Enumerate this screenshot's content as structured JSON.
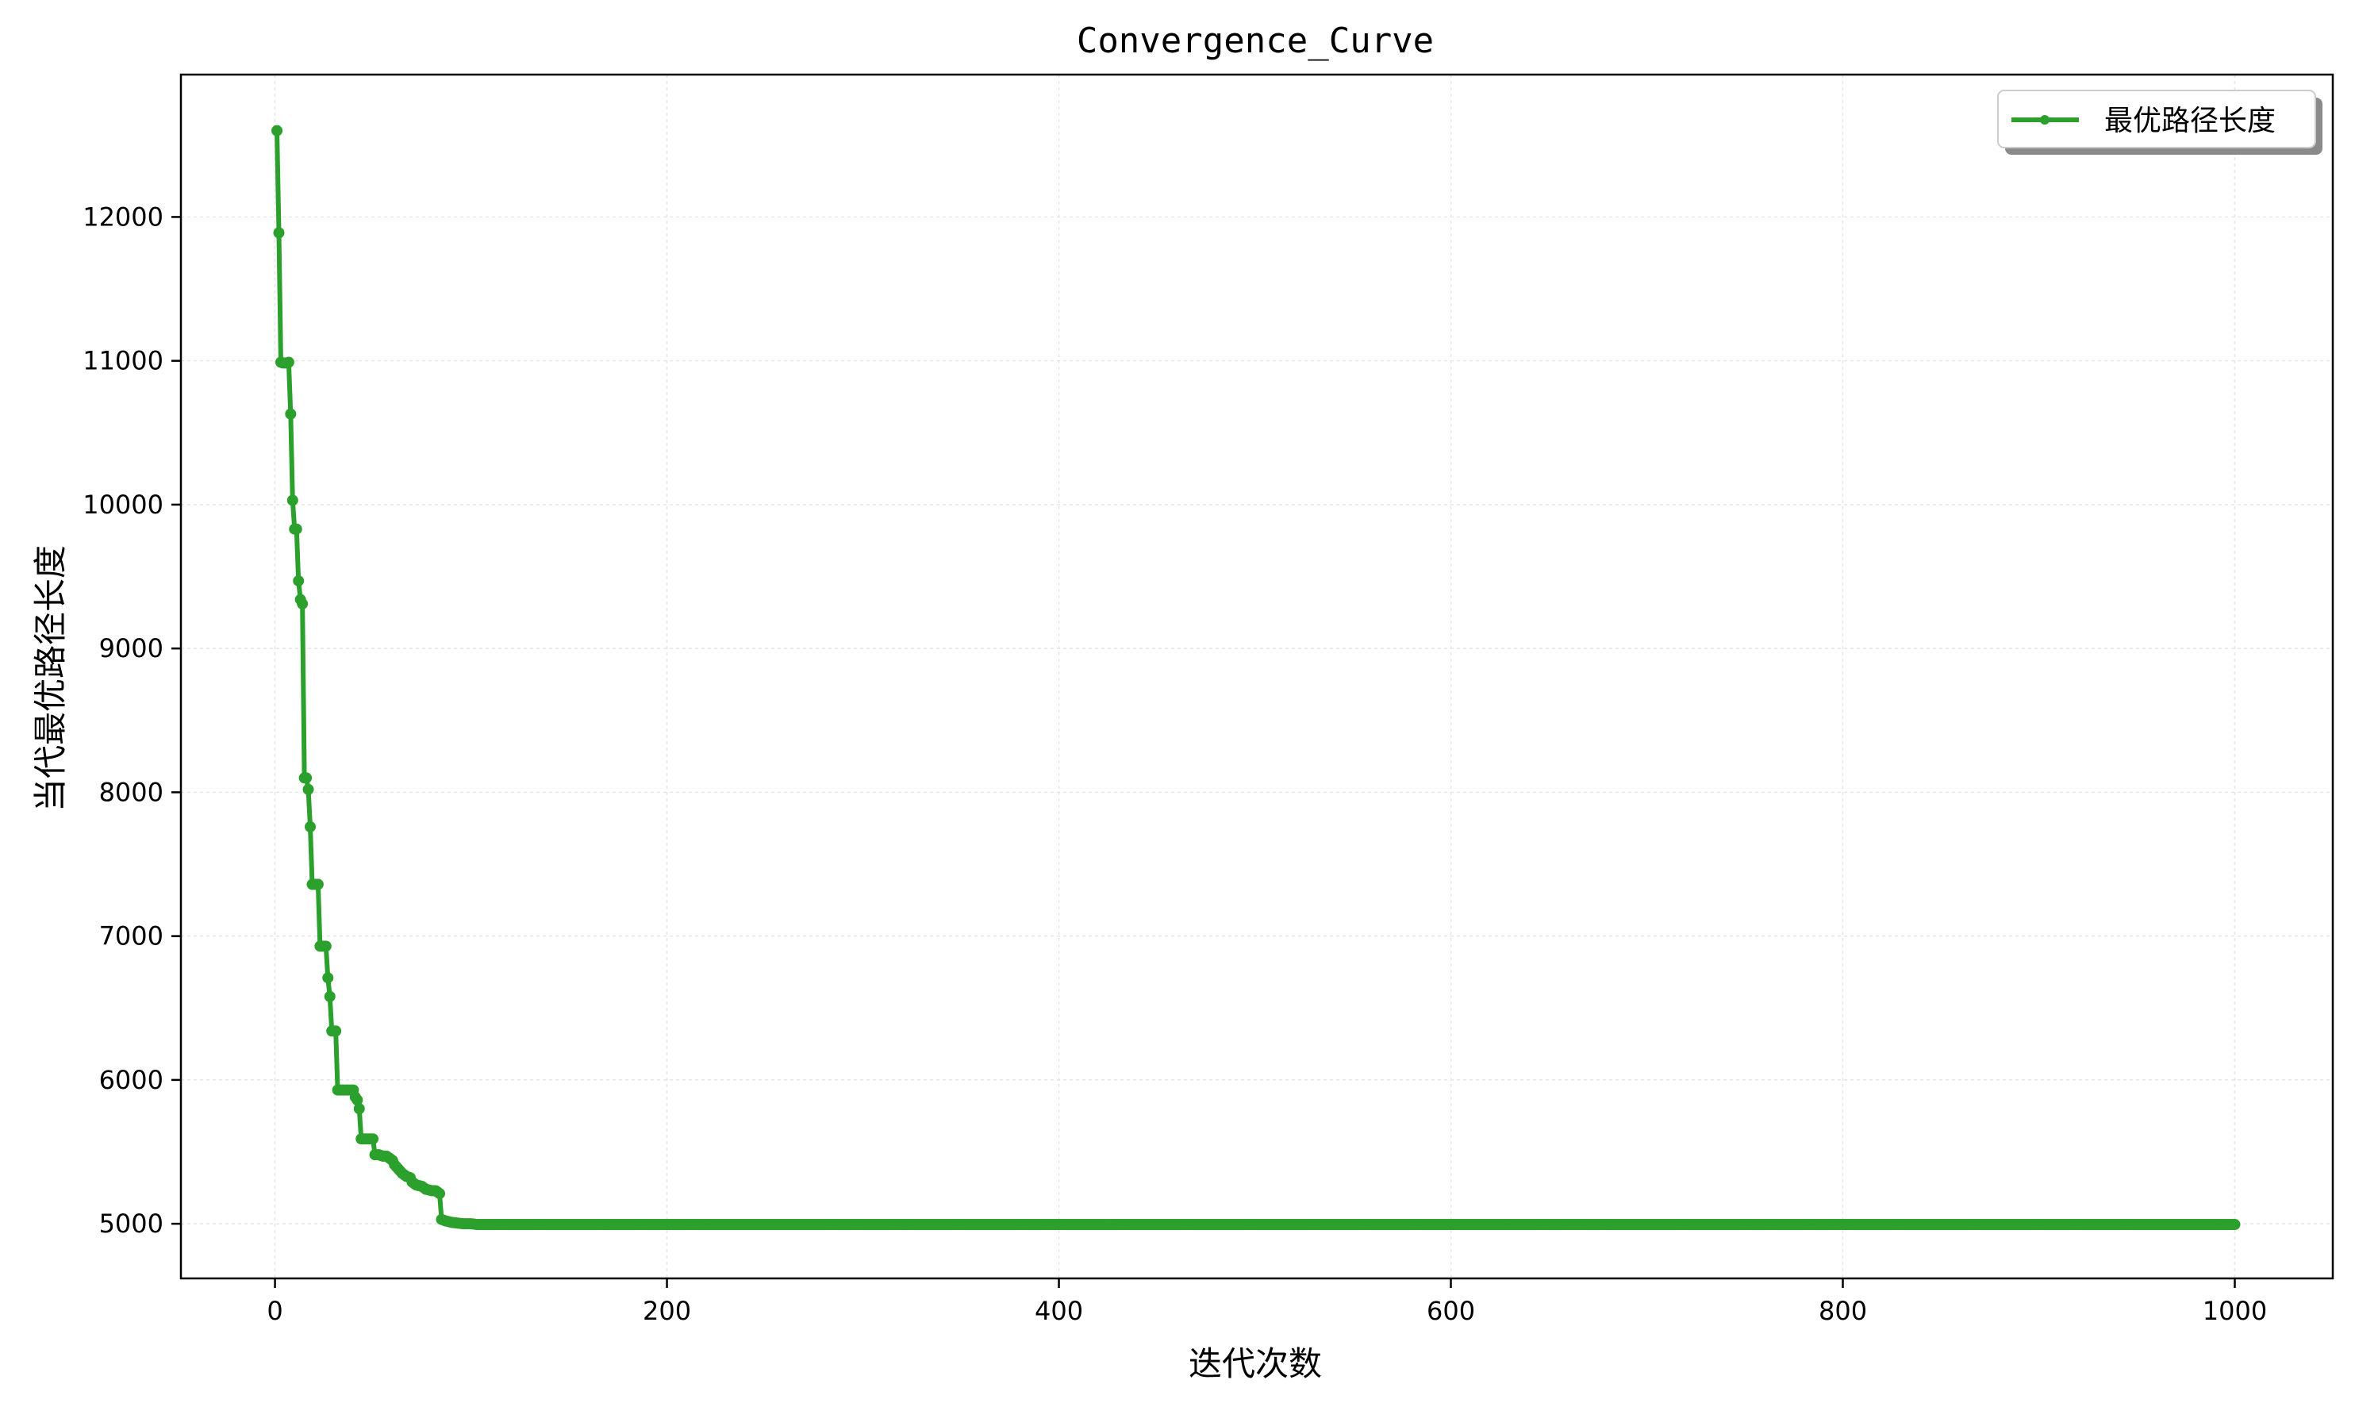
{
  "chart_data": {
    "type": "line",
    "title": "Convergence_Curve",
    "xlabel": "迭代次数",
    "ylabel": "当代最优路径长度",
    "xlim": [
      -48,
      1050
    ],
    "ylim": [
      4620,
      12990
    ],
    "xticks": [
      0,
      200,
      400,
      600,
      800,
      1000
    ],
    "yticks": [
      5000,
      6000,
      7000,
      8000,
      9000,
      10000,
      11000,
      12000
    ],
    "grid": true,
    "legend_position": "top-right",
    "series": [
      {
        "name": "最优路径长度",
        "color": "#2ca02c",
        "marker": "circle",
        "breakpoints": [
          [
            1,
            12600
          ],
          [
            2,
            11890
          ],
          [
            3,
            10990
          ],
          [
            4,
            10985
          ],
          [
            5,
            10985
          ],
          [
            6,
            10985
          ],
          [
            7,
            10990
          ],
          [
            8,
            10630
          ],
          [
            9,
            10030
          ],
          [
            10,
            9830
          ],
          [
            11,
            9830
          ],
          [
            12,
            9470
          ],
          [
            13,
            9340
          ],
          [
            14,
            9310
          ],
          [
            15,
            8100
          ],
          [
            16,
            8100
          ],
          [
            17,
            8020
          ],
          [
            18,
            7760
          ],
          [
            19,
            7360
          ],
          [
            20,
            7360
          ],
          [
            21,
            7360
          ],
          [
            22,
            7360
          ],
          [
            23,
            6930
          ],
          [
            24,
            6930
          ],
          [
            25,
            6930
          ],
          [
            26,
            6930
          ],
          [
            27,
            6710
          ],
          [
            28,
            6580
          ],
          [
            29,
            6340
          ],
          [
            30,
            6340
          ],
          [
            31,
            6340
          ],
          [
            32,
            5930
          ],
          [
            35,
            5930
          ],
          [
            38,
            5930
          ],
          [
            40,
            5930
          ],
          [
            41,
            5880
          ],
          [
            42,
            5860
          ],
          [
            43,
            5800
          ],
          [
            44,
            5590
          ],
          [
            46,
            5590
          ],
          [
            48,
            5590
          ],
          [
            50,
            5590
          ],
          [
            51,
            5480
          ],
          [
            53,
            5480
          ],
          [
            55,
            5470
          ],
          [
            57,
            5470
          ],
          [
            58,
            5460
          ],
          [
            60,
            5440
          ],
          [
            61,
            5410
          ],
          [
            63,
            5380
          ],
          [
            65,
            5350
          ],
          [
            67,
            5330
          ],
          [
            69,
            5320
          ],
          [
            70,
            5290
          ],
          [
            72,
            5270
          ],
          [
            75,
            5260
          ],
          [
            77,
            5240
          ],
          [
            80,
            5230
          ],
          [
            82,
            5230
          ],
          [
            84,
            5210
          ],
          [
            85,
            5030
          ],
          [
            87,
            5020
          ],
          [
            90,
            5010
          ],
          [
            93,
            5005
          ],
          [
            96,
            5000
          ],
          [
            100,
            5000
          ],
          [
            103,
            4995
          ],
          [
            1000,
            4995
          ]
        ]
      }
    ]
  }
}
